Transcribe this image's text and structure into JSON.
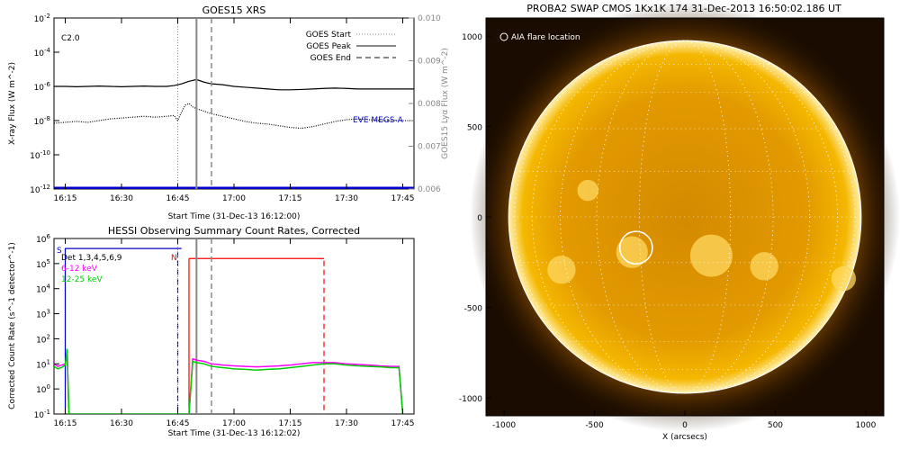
{
  "chart_data": [
    {
      "type": "line",
      "title": "GOES15 XRS",
      "ylabel": "X-ray Flux (W m^-2)",
      "y2label": "GOES15 Lyα Flux (W m^-2)",
      "xlabel": "Start Time (31-Dec-13 16:12:00)",
      "x_ticks": [
        "16:15",
        "16:30",
        "16:45",
        "17:00",
        "17:15",
        "17:30",
        "17:45"
      ],
      "x_range_min": [
        0,
        50
      ],
      "y_scale": "log",
      "y_ticks": [
        "10^-2",
        "10^-4",
        "10^-6",
        "10^-8",
        "10^-10",
        "10^-12"
      ],
      "y2_ticks": [
        "0.010",
        "0.009",
        "0.008",
        "0.007",
        "0.006"
      ],
      "y2_range": [
        0.006,
        0.01
      ],
      "annotation": "C2.0",
      "colors": {
        "axes": "#000000",
        "secondary_axis": "#888888",
        "eve": "#0000cc",
        "vline": "#888888"
      },
      "legend": {
        "placement": "top-right",
        "entries": [
          {
            "label": "GOES Start",
            "style": "dotted"
          },
          {
            "label": "GOES Peak",
            "style": "solid"
          },
          {
            "label": "GOES End",
            "style": "dashed"
          }
        ]
      },
      "vlines_min": {
        "start": 33,
        "peak": 38,
        "end": 42
      },
      "eve_label": "EVE MEGS-A",
      "series": [
        {
          "style": "solid",
          "x_min": [
            0,
            3,
            6,
            9,
            12,
            15,
            18,
            21,
            24,
            27,
            30,
            32,
            34,
            36,
            38,
            40,
            42,
            45,
            48,
            51,
            54,
            57,
            60,
            63,
            66,
            69,
            72,
            75,
            78,
            81,
            84,
            87,
            90,
            93,
            96
          ],
          "y_exp": [
            -6.0,
            -6.0,
            -6.02,
            -6.0,
            -5.98,
            -6.0,
            -6.02,
            -6.0,
            -5.98,
            -6.0,
            -6.0,
            -5.95,
            -5.85,
            -5.7,
            -5.6,
            -5.75,
            -5.85,
            -5.9,
            -6.0,
            -6.05,
            -6.1,
            -6.15,
            -6.2,
            -6.2,
            -6.18,
            -6.15,
            -6.12,
            -6.1,
            -6.12,
            -6.15,
            -6.15,
            -6.15,
            -6.15,
            -6.15,
            -6.15
          ]
        },
        {
          "style": "dotted",
          "x_min": [
            0,
            3,
            6,
            9,
            12,
            15,
            18,
            21,
            24,
            27,
            30,
            32,
            33,
            34,
            35,
            36,
            37,
            38,
            40,
            42,
            45,
            48,
            51,
            54,
            57,
            60,
            63,
            66,
            69,
            72,
            75,
            78,
            81,
            84,
            87,
            90,
            93,
            96
          ],
          "y_exp": [
            -8.15,
            -8.1,
            -8.05,
            -8.1,
            -8.0,
            -7.9,
            -7.85,
            -7.8,
            -7.75,
            -7.8,
            -7.75,
            -7.7,
            -8.0,
            -7.5,
            -7.1,
            -7.0,
            -7.2,
            -7.3,
            -7.45,
            -7.6,
            -7.75,
            -7.9,
            -8.05,
            -8.15,
            -8.2,
            -8.3,
            -8.4,
            -8.45,
            -8.35,
            -8.2,
            -8.05,
            -7.95,
            -7.9,
            -7.95,
            -8.0,
            -8.0,
            -8.0,
            -8.0
          ]
        }
      ],
      "eve_series": {
        "x_min": [
          0,
          96
        ],
        "y2": [
          0.006,
          0.006
        ]
      }
    },
    {
      "type": "line",
      "title": "HESSI Observing Summary Count Rates, Corrected",
      "ylabel": "Corrected Count Rate (s^-1 detector^-1)",
      "xlabel": "Start Time (31-Dec-13 16:12:02)",
      "x_ticks": [
        "16:15",
        "16:30",
        "16:45",
        "17:00",
        "17:15",
        "17:30",
        "17:45"
      ],
      "x_range_min": [
        0,
        50
      ],
      "y_scale": "log",
      "y_ticks": [
        "10^-1",
        "10^0",
        "10^1",
        "10^2",
        "10^3",
        "10^4",
        "10^5",
        "10^6"
      ],
      "annotation": "Det 1,3,4,5,6,9",
      "markers": {
        "saa_label": "S",
        "night_label": "N"
      },
      "colors": {
        "low": "#ff00ff",
        "high": "#00cc00",
        "saa": "#0000cc",
        "night": "#ff0000",
        "vline": "#888888"
      },
      "legend": {
        "placement": "top-left",
        "entries": [
          {
            "label": "6-12 keV",
            "color": "#ff00ff"
          },
          {
            "label": "12-25 keV",
            "color": "#00cc00"
          }
        ]
      },
      "vlines_min": {
        "start": 33,
        "peak": 38,
        "end": 42
      },
      "saa_interval_min": [
        3,
        34
      ],
      "saa_level": 5.6,
      "night_interval_min": [
        37,
        72
      ],
      "night_level": 5.2,
      "series": [
        {
          "name": "6-12 keV",
          "x_min": [
            0,
            1,
            2,
            3,
            3.5,
            4,
            36,
            37,
            38,
            40,
            42,
            45,
            48,
            51,
            54,
            57,
            60,
            63,
            66,
            69,
            72,
            75,
            78,
            81,
            84,
            87,
            90,
            92,
            93
          ],
          "y_exp": [
            1.0,
            0.9,
            0.95,
            1.0,
            1.4,
            -1,
            -1,
            1.2,
            1.15,
            1.1,
            1.0,
            0.95,
            0.92,
            0.9,
            0.88,
            0.9,
            0.92,
            0.95,
            1.0,
            1.05,
            1.05,
            1.05,
            1.0,
            0.98,
            0.95,
            0.92,
            0.9,
            0.9,
            -1
          ]
        },
        {
          "name": "12-25 keV",
          "x_min": [
            0,
            1,
            2,
            3,
            3.5,
            4,
            36,
            37,
            38,
            40,
            42,
            45,
            48,
            51,
            54,
            57,
            60,
            63,
            66,
            69,
            72,
            75,
            78,
            81,
            84,
            87,
            90,
            92,
            93
          ],
          "y_exp": [
            0.9,
            0.8,
            0.85,
            0.95,
            1.6,
            -1,
            -1,
            1.1,
            1.05,
            1.0,
            0.9,
            0.85,
            0.8,
            0.78,
            0.75,
            0.78,
            0.8,
            0.85,
            0.9,
            0.95,
            1.0,
            1.0,
            0.95,
            0.92,
            0.9,
            0.88,
            0.85,
            0.85,
            -1
          ]
        }
      ]
    },
    {
      "type": "image",
      "title": "PROBA2 SWAP CMOS 1Kx1K 174 31-Dec-2013 16:50:02.186 UT",
      "xlabel": "X (arcsecs)",
      "x_ticks": [
        -1000,
        -500,
        0,
        500,
        1000
      ],
      "y_ticks": [
        1000,
        500,
        0,
        -500,
        -1000
      ],
      "xlim": [
        -1100,
        1100
      ],
      "ylim": [
        -1100,
        1100
      ],
      "annotation": "AIA flare location",
      "flare_location_arcsec": [
        -270,
        -170
      ],
      "solar_radius_arcsec": 975,
      "colors": {
        "disk": "#f0a800",
        "disk_edge": "#ffe080",
        "background": "#1a0c00",
        "grid": "#ffffff"
      }
    }
  ]
}
